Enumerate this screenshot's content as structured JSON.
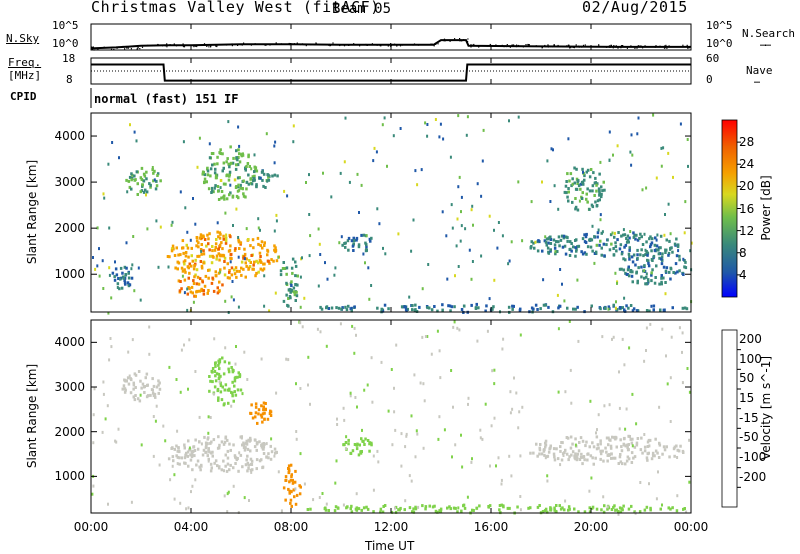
{
  "header": {
    "station": "Christmas Valley West (fitACF)",
    "beam": "Beam 05",
    "date": "02/Aug/2015",
    "cpid_label": "CPID",
    "cpid_value": "normal (fast) 151 IF",
    "nsky_label": "N.Sky",
    "nsearch_label": "N.Search",
    "freq_label_line1": "Freq.",
    "freq_label_line2": "[MHz]",
    "nave_label": "Nave",
    "nsky_ticks": [
      "10^5",
      "10^0"
    ],
    "nsearch_ticks": [
      "10^5",
      "10^0"
    ],
    "freq_ticks": [
      "18",
      "8"
    ],
    "nave_ticks": [
      "60",
      "0"
    ]
  },
  "xaxis": {
    "label": "Time UT",
    "ticks": [
      "00:00",
      "04:00",
      "08:00",
      "12:00",
      "16:00",
      "20:00",
      "00:00"
    ]
  },
  "chart_data": [
    {
      "type": "line",
      "name": "N.Sky / N.Search",
      "x_hours": [
        0,
        1,
        2,
        3,
        4,
        6,
        8,
        10,
        12,
        13.7,
        14,
        15,
        15.1,
        18,
        21,
        24
      ],
      "log10_nsky": [
        0.3,
        0.5,
        0.8,
        0.9,
        0.9,
        1.1,
        1.1,
        1.0,
        1.0,
        1.0,
        1.9,
        1.9,
        0.8,
        0.7,
        0.6,
        0.6
      ],
      "ylim_log10": [
        0,
        5
      ]
    },
    {
      "type": "line",
      "name": "Freq / Nave",
      "x_hours": [
        0,
        2.9,
        2.95,
        15,
        15.05,
        24
      ],
      "freq_mhz": [
        15.5,
        15.5,
        9.3,
        9.3,
        15.5,
        15.5
      ],
      "nave": [
        30,
        30,
        30,
        30,
        30,
        30
      ],
      "freq_ylim": [
        8,
        18
      ],
      "nave_ylim": [
        0,
        60
      ]
    },
    {
      "type": "heatmap",
      "quantity": "Power",
      "colorbar_label": "Power [dB]",
      "colorbar_ticks": [
        4,
        8,
        12,
        16,
        20,
        24,
        28
      ],
      "ylabel": "Slant Range [km]",
      "yticks": [
        1000,
        2000,
        3000,
        4000
      ],
      "ylim": [
        180,
        4500
      ],
      "xlim_hours": [
        0,
        24
      ],
      "regions": [
        {
          "t0": 1.3,
          "t1": 2.8,
          "r0": 2700,
          "r1": 3350,
          "level": 12
        },
        {
          "t0": 3.0,
          "t1": 7.5,
          "r0": 900,
          "r1": 1950,
          "level": 22
        },
        {
          "t0": 3.2,
          "t1": 5.3,
          "r0": 550,
          "r1": 1000,
          "level": 24
        },
        {
          "t0": 4.4,
          "t1": 6.6,
          "r0": 2600,
          "r1": 3800,
          "level": 13
        },
        {
          "t0": 6.0,
          "t1": 7.5,
          "r0": 2900,
          "r1": 3300,
          "level": 10
        },
        {
          "t0": 7.5,
          "t1": 8.3,
          "r0": 300,
          "r1": 1400,
          "level": 11
        },
        {
          "t0": 10.0,
          "t1": 11.3,
          "r0": 1500,
          "r1": 1900,
          "level": 9
        },
        {
          "t0": 17.4,
          "t1": 23.7,
          "r0": 1400,
          "r1": 1950,
          "level": 9
        },
        {
          "t0": 18.8,
          "t1": 20.5,
          "r0": 2400,
          "r1": 3400,
          "level": 11
        },
        {
          "t0": 21.0,
          "t1": 23.8,
          "r0": 800,
          "r1": 1600,
          "level": 9
        },
        {
          "t0": 0.7,
          "t1": 1.6,
          "r0": 700,
          "r1": 1200,
          "level": 8
        },
        {
          "t0": 8.3,
          "t1": 24,
          "r0": 200,
          "r1": 380,
          "level": 8
        }
      ]
    },
    {
      "type": "heatmap",
      "quantity": "Velocity",
      "colorbar_label": "Velocity [m s^-1]",
      "colorbar_ticks": [
        200,
        100,
        50,
        15,
        -15,
        -50,
        -100,
        -200
      ],
      "ylabel": "Slant Range [km]",
      "yticks": [
        1000,
        2000,
        3000,
        4000
      ],
      "ylim": [
        180,
        4500
      ],
      "xlim_hours": [
        0,
        24
      ],
      "regions": [
        {
          "t0": 1.2,
          "t1": 2.8,
          "r0": 2700,
          "r1": 3400,
          "level": 0
        },
        {
          "t0": 3.0,
          "t1": 7.5,
          "r0": 1100,
          "r1": 1950,
          "level": 0
        },
        {
          "t0": 4.6,
          "t1": 6.0,
          "r0": 2600,
          "r1": 3700,
          "level": 20
        },
        {
          "t0": 6.2,
          "t1": 7.2,
          "r0": 2200,
          "r1": 2700,
          "level": -60
        },
        {
          "t0": 7.6,
          "t1": 8.4,
          "r0": 350,
          "r1": 1300,
          "level": -70
        },
        {
          "t0": 10.0,
          "t1": 11.3,
          "r0": 1500,
          "r1": 1900,
          "level": 30
        },
        {
          "t0": 17.4,
          "t1": 23.7,
          "r0": 1300,
          "r1": 1950,
          "level": 0
        },
        {
          "t0": 8.3,
          "t1": 24,
          "r0": 200,
          "r1": 400,
          "level": 30
        }
      ]
    }
  ],
  "colors": {
    "power_scale": [
      "#0000ff",
      "#1f58a8",
      "#3a8a7a",
      "#6fbe4a",
      "#d8d820",
      "#f5a000",
      "#f06000",
      "#ff0000"
    ],
    "velocity_scale": [
      "#2233bb",
      "#2e6e6e",
      "#33aa33",
      "#7fd24a",
      "#c8c8c0",
      "#f5c000",
      "#f59000",
      "#f05000",
      "#ff0000"
    ]
  }
}
